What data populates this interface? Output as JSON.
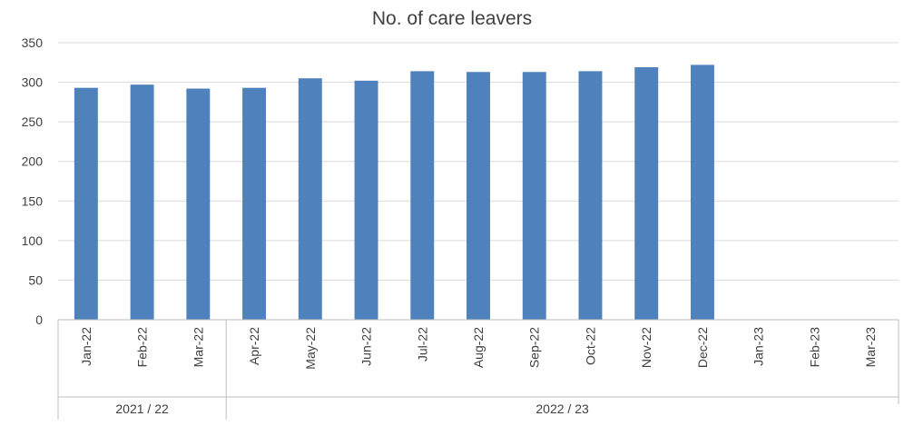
{
  "chart_data": {
    "type": "bar",
    "title": "No. of care leavers",
    "xlabel": "",
    "ylabel": "",
    "ylim": [
      0,
      350
    ],
    "yticks": [
      0,
      50,
      100,
      150,
      200,
      250,
      300,
      350
    ],
    "grid": true,
    "legend": "none",
    "bar_color": "#4f81bd",
    "categories": [
      "Jan-22",
      "Feb-22",
      "Mar-22",
      "Apr-22",
      "May-22",
      "Jun-22",
      "Jul-22",
      "Aug-22",
      "Sep-22",
      "Oct-22",
      "Nov-22",
      "Dec-22",
      "Jan-23",
      "Feb-23",
      "Mar-23"
    ],
    "values": [
      293,
      297,
      292,
      293,
      305,
      302,
      314,
      313,
      313,
      314,
      319,
      322,
      null,
      null,
      null
    ],
    "groups": [
      {
        "label": "2021 / 22",
        "span": 3
      },
      {
        "label": "2022 / 23",
        "span": 12
      }
    ]
  }
}
